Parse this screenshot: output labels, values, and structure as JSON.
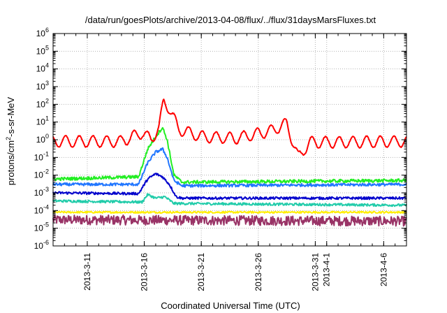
{
  "chart_data": {
    "type": "line",
    "title": "/data/run/goesPlots/archive/2013-04-08/flux/../flux/31daysMarsFluxes.txt",
    "xlabel": "Coordinated Universal Time (UTC)",
    "ylabel": {
      "prefix": "protons/cm",
      "sup": "2",
      "suffix": "-s-sr-MeV"
    },
    "yscale": "log",
    "ylim_exp": [
      -6,
      6
    ],
    "y_ticks": [
      {
        "base": "10",
        "exp": "-6"
      },
      {
        "base": "10",
        "exp": "-5"
      },
      {
        "base": "10",
        "exp": "-4"
      },
      {
        "base": "10",
        "exp": "-3"
      },
      {
        "base": "10",
        "exp": "-2"
      },
      {
        "base": "10",
        "exp": "-1"
      },
      {
        "base": "10",
        "exp": "0"
      },
      {
        "base": "10",
        "exp": "1"
      },
      {
        "base": "10",
        "exp": "2"
      },
      {
        "base": "10",
        "exp": "3"
      },
      {
        "base": "10",
        "exp": "4"
      },
      {
        "base": "10",
        "exp": "5"
      },
      {
        "base": "10",
        "exp": "6"
      }
    ],
    "xlim": [
      "2013-03-08",
      "2013-04-08"
    ],
    "x_ticks": [
      "2013-3-11",
      "2013-3-16",
      "2013-3-21",
      "2013-3-26",
      "2013-3-31",
      "2013-4-1",
      "2013-4-6"
    ],
    "grid": true,
    "series": [
      {
        "color": "#ff0000",
        "keypoints": [
          [
            "2013-03-08",
            0.8
          ],
          [
            "2013-03-14",
            0.8
          ],
          [
            "2013-03-15.8",
            2.5
          ],
          [
            "2013-03-16.6",
            1
          ],
          [
            "2013-03-17.3",
            5
          ],
          [
            "2013-03-17.7",
            150
          ],
          [
            "2013-03-18.2",
            60
          ],
          [
            "2013-03-19",
            4
          ],
          [
            "2013-03-21",
            1.5
          ],
          [
            "2013-03-24",
            1.2
          ],
          [
            "2013-03-27",
            3
          ],
          [
            "2013-03-28.5",
            8
          ],
          [
            "2013-03-29.5",
            0.1
          ],
          [
            "2013-03-30.5",
            0.7
          ],
          [
            "2013-04-08",
            0.8
          ]
        ]
      },
      {
        "color": "#22ee22",
        "keypoints": [
          [
            "2013-03-08",
            0.006
          ],
          [
            "2013-03-15.5",
            0.008
          ],
          [
            "2013-03-16.3",
            0.3
          ],
          [
            "2013-03-17",
            1.5
          ],
          [
            "2013-03-17.6",
            5
          ],
          [
            "2013-03-18",
            1
          ],
          [
            "2013-03-18.6",
            0.01
          ],
          [
            "2013-03-19.3",
            0.004
          ],
          [
            "2013-04-08",
            0.005
          ]
        ]
      },
      {
        "color": "#2277ff",
        "keypoints": [
          [
            "2013-03-08",
            0.003
          ],
          [
            "2013-03-15.5",
            0.003
          ],
          [
            "2013-03-16.3",
            0.05
          ],
          [
            "2013-03-17",
            0.2
          ],
          [
            "2013-03-17.6",
            0.3
          ],
          [
            "2013-03-18",
            0.1
          ],
          [
            "2013-03-18.6",
            0.005
          ],
          [
            "2013-03-19.3",
            0.0025
          ],
          [
            "2013-04-08",
            0.003
          ]
        ]
      },
      {
        "color": "#0000cc",
        "keypoints": [
          [
            "2013-03-08",
            0.001
          ],
          [
            "2013-03-15.5",
            0.0009
          ],
          [
            "2013-03-16.3",
            0.006
          ],
          [
            "2013-03-17",
            0.012
          ],
          [
            "2013-03-17.6",
            0.008
          ],
          [
            "2013-03-18.2",
            0.003
          ],
          [
            "2013-03-18.8",
            0.0006
          ],
          [
            "2013-03-19.3",
            0.0005
          ],
          [
            "2013-04-08",
            0.0005
          ]
        ]
      },
      {
        "color": "#22ccaa",
        "keypoints": [
          [
            "2013-03-08",
            0.00035
          ],
          [
            "2013-03-15.8",
            0.0003
          ],
          [
            "2013-03-16.3",
            0.0008
          ],
          [
            "2013-03-17",
            0.0005
          ],
          [
            "2013-03-17.8",
            0.0006
          ],
          [
            "2013-03-18.6",
            0.00025
          ],
          [
            "2013-04-08",
            0.0002
          ]
        ]
      },
      {
        "color": "#ffee00",
        "keypoints": [
          [
            "2013-03-08",
            8e-05
          ],
          [
            "2013-04-08",
            8e-05
          ]
        ]
      },
      {
        "color": "#993366",
        "keypoints": [
          [
            "2013-03-08",
            3e-05
          ],
          [
            "2013-04-08",
            2.5e-05
          ]
        ]
      }
    ]
  }
}
